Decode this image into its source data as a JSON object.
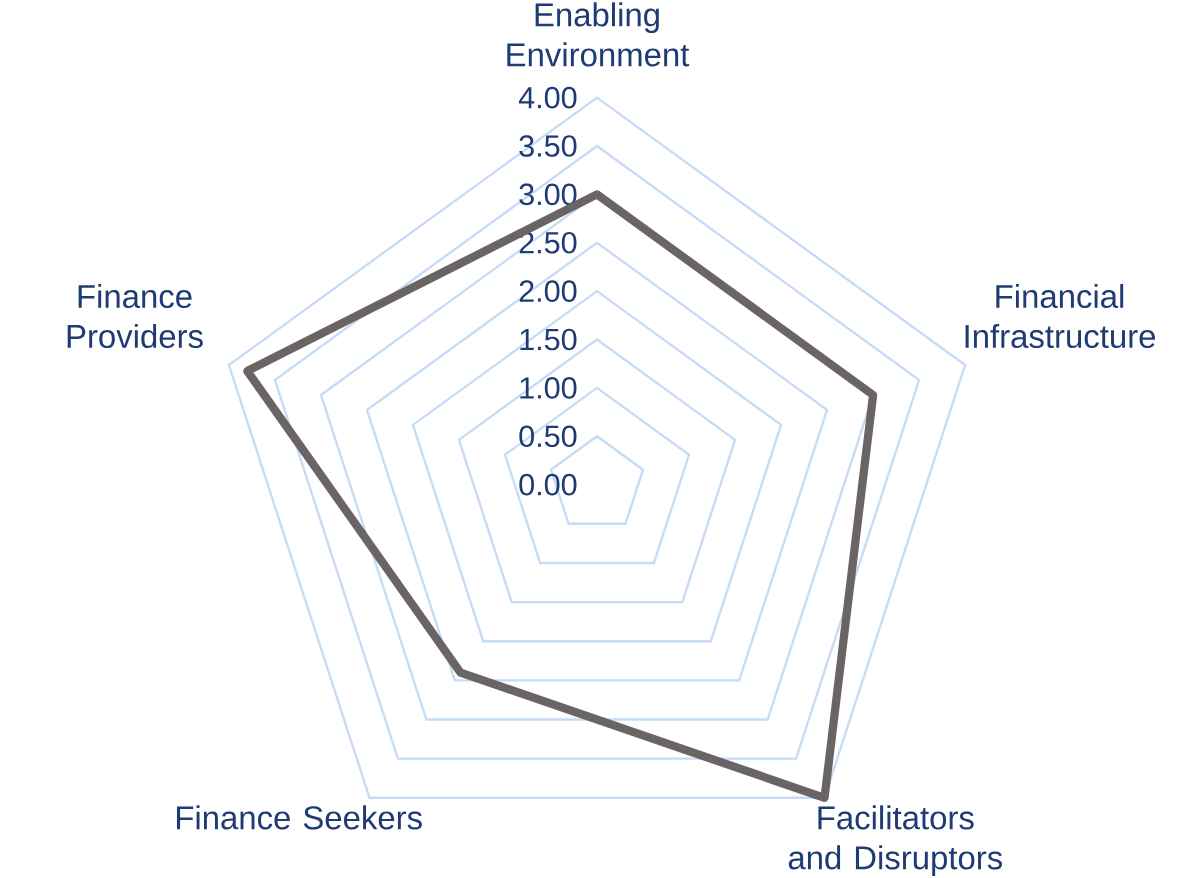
{
  "chart_data": {
    "type": "radar",
    "categories": [
      "Enabling Environment",
      "Financial Infrastructure",
      "Facilitators and Disruptors",
      "Finance Seekers",
      "Finance Providers"
    ],
    "series": [
      {
        "color": "#6b6464",
        "values": [
          3.0,
          3.0,
          4.0,
          2.4,
          3.8
        ]
      }
    ],
    "ylim": [
      0,
      4
    ],
    "yticks": [
      {
        "value": 0,
        "label": "0.00"
      },
      {
        "value": 0.5,
        "label": "0.50"
      },
      {
        "value": 1,
        "label": "1.00"
      },
      {
        "value": 1.5,
        "label": "1.50"
      },
      {
        "value": 2,
        "label": "2.00"
      },
      {
        "value": 2.5,
        "label": "2.50"
      },
      {
        "value": 3,
        "label": "3.00"
      },
      {
        "value": 3.5,
        "label": "3.50"
      },
      {
        "value": 4,
        "label": "4.00"
      }
    ],
    "grid": true
  }
}
